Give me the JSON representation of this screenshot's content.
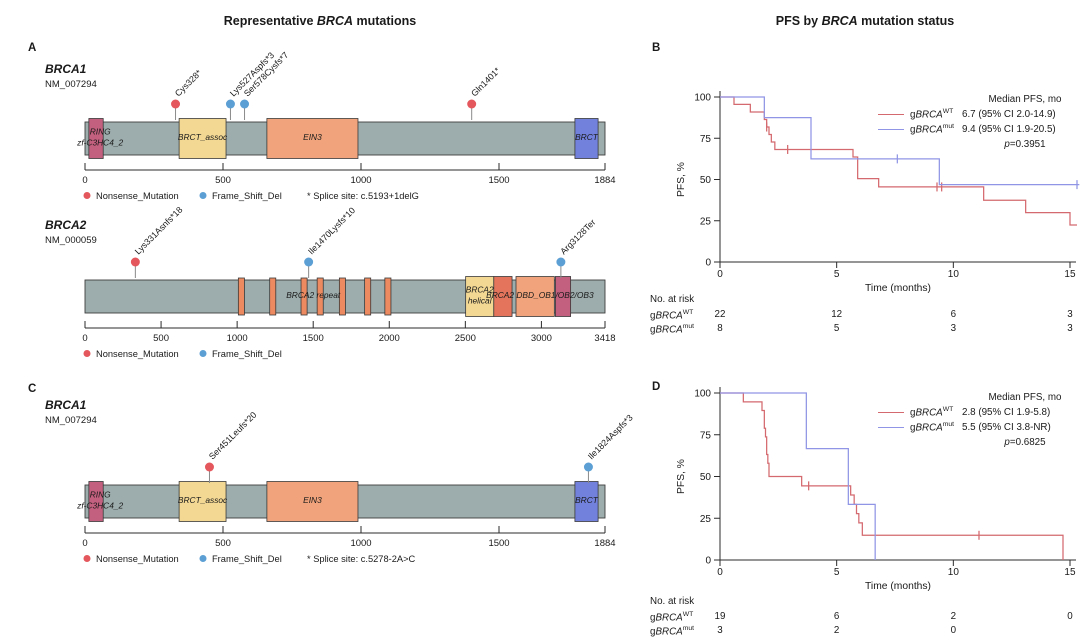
{
  "titles": {
    "left": {
      "pre": "Representative ",
      "em": "BRCA",
      "post": " mutations"
    },
    "right": {
      "pre": "PFS by ",
      "em": "BRCA",
      "post": " mutation status"
    }
  },
  "panel_labels": {
    "a": "A",
    "b": "B",
    "c": "C",
    "d": "D"
  },
  "colors": {
    "nonsense": "#e4575c",
    "frameshift": "#5b9fd4",
    "bar": "#9dacac",
    "bar_stroke": "#3f3f3f",
    "axis": "#2b2b2b",
    "wt_line": "#d4696f",
    "mut_line": "#9095e5"
  },
  "chart_data": [
    {
      "type": "lollipop",
      "panel": "A",
      "gene": "BRCA1",
      "transcript": "NM_007294",
      "length": 1884,
      "axis_ticks": [
        0,
        500,
        1000,
        1500,
        1884
      ],
      "domains": [
        {
          "name": "RING",
          "start": 14,
          "end": 66,
          "color": "#c4607f",
          "label": ""
        },
        {
          "name": "BRCT_assoc",
          "start": 341,
          "end": 511,
          "color": "#f3d894",
          "label": "BRCT_assoc"
        },
        {
          "name": "EIN3",
          "start": 659,
          "end": 989,
          "color": "#f1a47b",
          "label": "EIN3"
        },
        {
          "name": "BRCT",
          "start": 1775,
          "end": 1859,
          "color": "#7282dc",
          "label": "BRCT"
        }
      ],
      "bar_labels": [
        {
          "lines": [
            "RING",
            "zf-C3HC4_2"
          ],
          "pos": 55
        }
      ],
      "mutations": [
        {
          "label": "Cys328*",
          "pos": 328,
          "type": "nonsense"
        },
        {
          "label": "Lys527Aspfs*3",
          "pos": 527,
          "type": "frameshift"
        },
        {
          "label": "Ser578Cysfs*7",
          "pos": 578,
          "type": "frameshift"
        },
        {
          "label": "Gln1401*",
          "pos": 1401,
          "type": "nonsense"
        }
      ],
      "legend": {
        "nonsense": "Nonsense_Mutation",
        "frameshift": "Frame_Shift_Del",
        "note": "* Splice site: c.5193+1delG"
      }
    },
    {
      "type": "lollipop",
      "panel": "A",
      "gene": "BRCA2",
      "transcript": "NM_000059",
      "length": 3418,
      "axis_ticks": [
        0,
        500,
        1000,
        1500,
        2000,
        2500,
        3000,
        3418
      ],
      "domains": [
        {
          "name": "BRC repeat 1",
          "start": 1008,
          "end": 1048,
          "color": "#ee8a60",
          "narrow": true
        },
        {
          "name": "BRC repeat 2",
          "start": 1214,
          "end": 1254,
          "color": "#ee8a60",
          "narrow": true
        },
        {
          "name": "BRC repeat 3",
          "start": 1420,
          "end": 1460,
          "color": "#ee8a60",
          "narrow": true
        },
        {
          "name": "BRC repeat 4",
          "start": 1526,
          "end": 1566,
          "color": "#ee8a60",
          "narrow": true
        },
        {
          "name": "BRC repeat 5",
          "start": 1672,
          "end": 1712,
          "color": "#ee8a60",
          "narrow": true
        },
        {
          "name": "BRC repeat 6",
          "start": 1838,
          "end": 1878,
          "color": "#ee8a60",
          "narrow": true
        },
        {
          "name": "BRC repeat 7",
          "start": 1971,
          "end": 2011,
          "color": "#ee8a60",
          "narrow": true
        },
        {
          "name": "BRCA2 helical",
          "start": 2502,
          "end": 2687,
          "color": "#f3d894",
          "label": "BRCA2\nhelical"
        },
        {
          "name": "OB1",
          "start": 2687,
          "end": 2807,
          "color": "#e4755c",
          "label": ""
        },
        {
          "name": "OB2",
          "start": 2833,
          "end": 3085,
          "color": "#f1a47b",
          "label": ""
        },
        {
          "name": "OB3",
          "start": 3092,
          "end": 3192,
          "color": "#c4607f",
          "label": ""
        }
      ],
      "bar_labels": [
        {
          "lines": [
            "BRCA2 repeat"
          ],
          "pos": 1500
        },
        {
          "lines": [
            "BRCA2 DBD_OB1/OB2/OB3"
          ],
          "pos": 2990
        }
      ],
      "mutations": [
        {
          "label": "Lys331Asnfs*18",
          "pos": 331,
          "type": "nonsense"
        },
        {
          "label": "Ile1470Lysfs*10",
          "pos": 1470,
          "type": "frameshift"
        },
        {
          "label": "Arg3128Ter",
          "pos": 3128,
          "type": "frameshift"
        }
      ],
      "legend": {
        "nonsense": "Nonsense_Mutation",
        "frameshift": "Frame_Shift_Del"
      }
    },
    {
      "type": "km",
      "panel": "B",
      "ylabel": "PFS, %",
      "xlabel": "Time (months)",
      "yticks": [
        0,
        25,
        50,
        75,
        100
      ],
      "xticks": [
        0,
        5,
        10,
        15
      ],
      "legend_header": "Median PFS, mo",
      "p_italic": "p",
      "p_rest": "=0.3951",
      "series": [
        {
          "prefix": "g",
          "gene": "BRCA",
          "sup": "WT",
          "color": "#d4696f",
          "stats": "6.7 (95% CI 2.0-14.9)",
          "steps": [
            [
              0.6,
              95.5
            ],
            [
              1.3,
              90.9
            ],
            [
              1.9,
              86.4
            ],
            [
              2.0,
              81.8
            ],
            [
              2.1,
              77.3
            ],
            [
              2.2,
              72.7
            ],
            [
              2.35,
              68.2
            ],
            [
              5.7,
              63.6
            ],
            [
              5.9,
              50.5
            ],
            [
              6.8,
              45.5
            ],
            [
              11.3,
              37.4
            ],
            [
              13.1,
              29.9
            ],
            [
              15.0,
              22.4
            ]
          ],
          "end": 15.3,
          "censors": [
            [
              2.0,
              81.8
            ],
            [
              2.9,
              68.2
            ],
            [
              9.3,
              45.5
            ],
            [
              9.5,
              45.5
            ]
          ]
        },
        {
          "prefix": "g",
          "gene": "BRCA",
          "sup": "mut",
          "color": "#9095e5",
          "stats": "9.4 (95% CI 1.9-20.5)",
          "steps": [
            [
              1.9,
              87.5
            ],
            [
              3.9,
              62.5
            ],
            [
              9.4,
              46.9
            ]
          ],
          "end": 15.4,
          "censors": [
            [
              7.6,
              62.5
            ],
            [
              15.3,
              46.9
            ]
          ]
        }
      ],
      "risk_table": {
        "title": "No. at risk",
        "rows": [
          {
            "prefix": "g",
            "gene": "BRCA",
            "sup": "WT",
            "counts": [
              "22",
              "12",
              "6",
              "3"
            ]
          },
          {
            "prefix": "g",
            "gene": "BRCA",
            "sup": "mut",
            "counts": [
              "8",
              "5",
              "3",
              "3"
            ]
          }
        ]
      }
    },
    {
      "type": "lollipop",
      "panel": "C",
      "gene": "BRCA1",
      "transcript": "NM_007294",
      "length": 1884,
      "axis_ticks": [
        0,
        500,
        1000,
        1500,
        1884
      ],
      "domains": [
        {
          "name": "RING",
          "start": 14,
          "end": 66,
          "color": "#c4607f",
          "label": ""
        },
        {
          "name": "BRCT_assoc",
          "start": 341,
          "end": 511,
          "color": "#f3d894",
          "label": "BRCT_assoc"
        },
        {
          "name": "EIN3",
          "start": 659,
          "end": 989,
          "color": "#f1a47b",
          "label": "EIN3"
        },
        {
          "name": "BRCT",
          "start": 1775,
          "end": 1859,
          "color": "#7282dc",
          "label": "BRCT"
        }
      ],
      "bar_labels": [
        {
          "lines": [
            "RING",
            "zf-C3HC4_2"
          ],
          "pos": 55
        }
      ],
      "mutations": [
        {
          "label": "Ser451Leufs*20",
          "pos": 451,
          "type": "nonsense"
        },
        {
          "label": "Ile1824Aspfs*3",
          "pos": 1824,
          "type": "frameshift"
        }
      ],
      "legend": {
        "nonsense": "Nonsense_Mutation",
        "frameshift": "Frame_Shift_Del",
        "note": "* Splice site: c.5278-2A>C"
      }
    },
    {
      "type": "km",
      "panel": "D",
      "ylabel": "PFS, %",
      "xlabel": "Time (months)",
      "yticks": [
        0,
        25,
        50,
        75,
        100
      ],
      "xticks": [
        0,
        5,
        10,
        15
      ],
      "legend_header": "Median PFS, mo",
      "p_italic": "p",
      "p_rest": "=0.6825",
      "series": [
        {
          "prefix": "g",
          "gene": "BRCA",
          "sup": "WT",
          "color": "#d4696f",
          "stats": "2.8 (95% CI 1.9-5.8)",
          "steps": [
            [
              1.0,
              94.7
            ],
            [
              1.8,
              89.5
            ],
            [
              1.9,
              78.9
            ],
            [
              1.95,
              73.7
            ],
            [
              2.0,
              63.2
            ],
            [
              2.05,
              57.9
            ],
            [
              2.1,
              50.0
            ],
            [
              3.5,
              44.4
            ],
            [
              5.6,
              38.9
            ],
            [
              5.75,
              33.3
            ],
            [
              5.85,
              27.8
            ],
            [
              5.95,
              22.2
            ],
            [
              6.1,
              14.8
            ],
            [
              14.7,
              0
            ]
          ],
          "end": 14.7,
          "censors": [
            [
              3.8,
              44.4
            ],
            [
              11.1,
              14.8
            ]
          ]
        },
        {
          "prefix": "g",
          "gene": "BRCA",
          "sup": "mut",
          "color": "#9095e5",
          "stats": "5.5 (95% CI 3.8-NR)",
          "steps": [
            [
              3.7,
              66.7
            ],
            [
              5.5,
              33.3
            ],
            [
              6.65,
              0
            ]
          ],
          "end": 6.65,
          "censors": []
        }
      ],
      "risk_table": {
        "title": "No. at risk",
        "rows": [
          {
            "prefix": "g",
            "gene": "BRCA",
            "sup": "WT",
            "counts": [
              "19",
              "6",
              "2",
              "0"
            ]
          },
          {
            "prefix": "g",
            "gene": "BRCA",
            "sup": "mut",
            "counts": [
              "3",
              "2",
              "0"
            ]
          }
        ]
      }
    }
  ]
}
